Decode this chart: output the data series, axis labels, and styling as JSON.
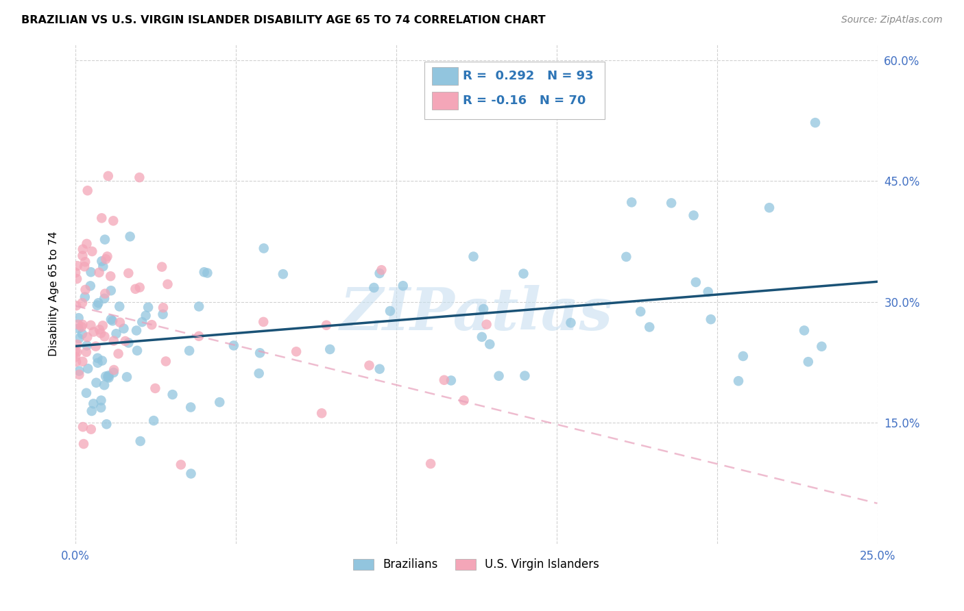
{
  "title": "BRAZILIAN VS U.S. VIRGIN ISLANDER DISABILITY AGE 65 TO 74 CORRELATION CHART",
  "source": "Source: ZipAtlas.com",
  "ylabel": "Disability Age 65 to 74",
  "xlim": [
    0.0,
    0.25
  ],
  "ylim": [
    0.0,
    0.62
  ],
  "yticks": [
    0.15,
    0.3,
    0.45,
    0.6
  ],
  "xticks": [
    0.0,
    0.05,
    0.1,
    0.15,
    0.2,
    0.25
  ],
  "blue_R": 0.292,
  "blue_N": 93,
  "pink_R": -0.16,
  "pink_N": 70,
  "blue_color": "#92c5de",
  "pink_color": "#f4a6b8",
  "blue_line_color": "#1a5276",
  "pink_line_color": "#e8567a",
  "watermark_color": "#c8dff0"
}
